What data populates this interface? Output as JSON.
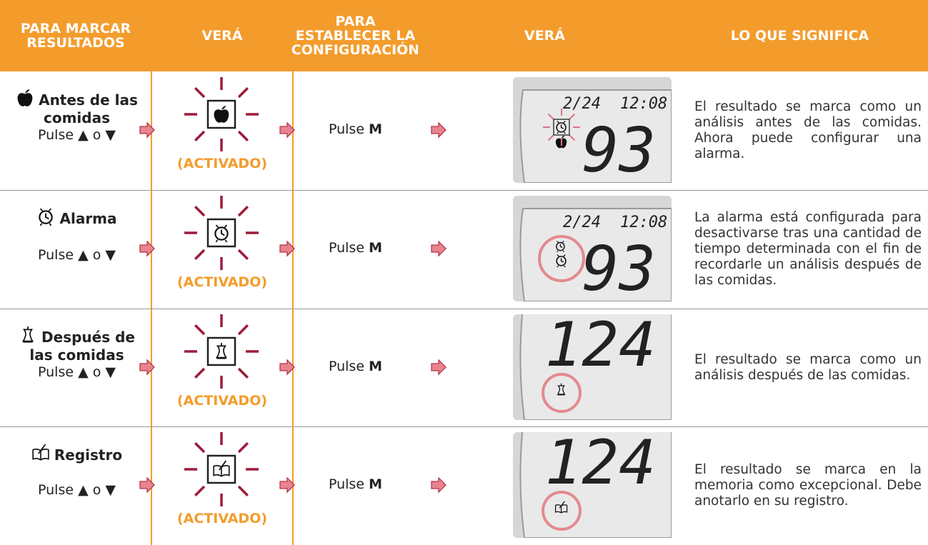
{
  "header": {
    "columns": [
      "PARA MARCAR RESULTADOS",
      "VERÁ",
      "PARA ESTABLECER LA CONFIGURACIÓN",
      "VERÁ",
      "LO QUE SIGNIFICA"
    ]
  },
  "rows": [
    {
      "label": "Antes de las comidas",
      "action": "Pulse ▲ o ▼",
      "status": "(ACTIVADO)",
      "setting": {
        "text": "Pulse",
        "key": "M"
      },
      "display": {
        "date": "2/24",
        "time": "12:08",
        "value": "93"
      },
      "meaning": "El resultado se marca como un análisis antes de las comidas. Ahora puede configurar una alarma."
    },
    {
      "label": "Alarma",
      "action": "Pulse ▲ o ▼",
      "status": "(ACTIVADO)",
      "setting": {
        "text": "Pulse",
        "key": "M"
      },
      "display": {
        "date": "2/24",
        "time": "12:08",
        "value": "93"
      },
      "meaning": "La alarma está configurada para desactivarse tras una cantidad de tiempo determinada con el fin de recordarle un análisis después de las comidas."
    },
    {
      "label": "Después de las comidas",
      "action": "Pulse ▲ o ▼",
      "status": "(ACTIVADO)",
      "setting": {
        "text": "Pulse",
        "key": "M"
      },
      "display": {
        "value": "124"
      },
      "meaning": "El resultado se marca como un análisis después de las comidas."
    },
    {
      "label": "Registro",
      "action": "Pulse ▲ o ▼",
      "status": "(ACTIVADO)",
      "setting": {
        "text": "Pulse",
        "key": "M"
      },
      "display": {
        "value": "124"
      },
      "meaning": "El resultado se marca en la memoria como excepcional. Debe anotarlo en su registro."
    }
  ]
}
